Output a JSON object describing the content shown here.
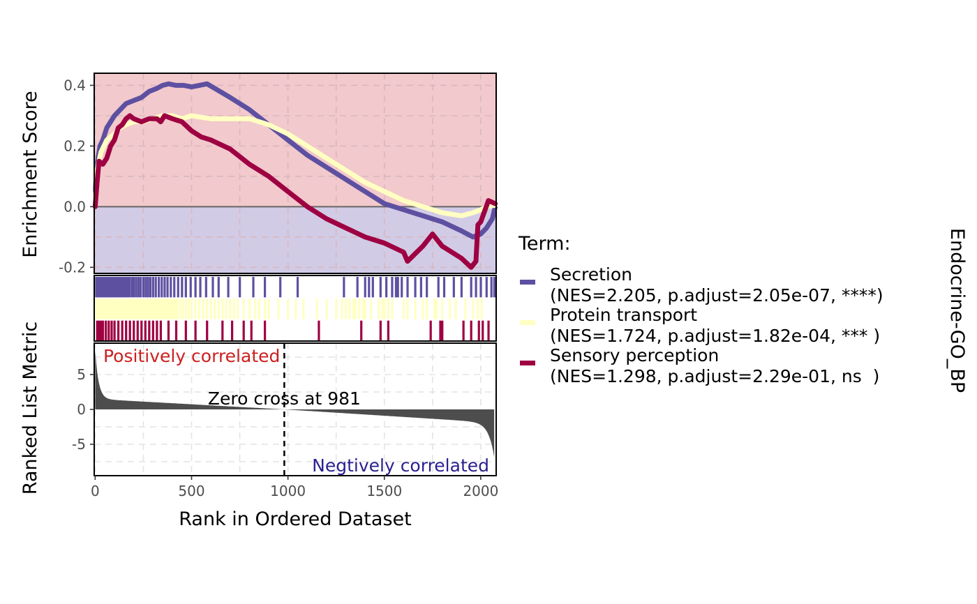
{
  "chart_data": {
    "type": "line",
    "title": "",
    "strip_label": "Endocrine-GO_BP",
    "xlabel": "Rank in Ordered Dataset",
    "xlim": [
      -5,
      2080
    ],
    "x_ticks": [
      0,
      500,
      1000,
      1500,
      2000
    ],
    "x_tick_labels": [
      "0",
      "500",
      "1000",
      "1500",
      "2000"
    ],
    "grid": true,
    "legend_position": "right",
    "legend_title": "Term:",
    "enrichment": {
      "ylabel": "Enrichment Score",
      "ylim": [
        -0.22,
        0.44
      ],
      "y_ticks": [
        -0.2,
        0.0,
        0.2,
        0.4
      ],
      "y_tick_labels": [
        "-0.2",
        "0.0",
        "0.2",
        "0.4"
      ],
      "positive_fill": "#f2c9cc",
      "negative_fill": "#d2cbe6",
      "series": [
        {
          "name": "Secretion",
          "stats": "(NES=2.205, p.adjust=2.05e-07, ****)",
          "color": "#5e50a1",
          "x": [
            0,
            10,
            25,
            40,
            60,
            80,
            100,
            130,
            160,
            200,
            240,
            280,
            320,
            350,
            380,
            420,
            460,
            500,
            540,
            580,
            620,
            700,
            800,
            900,
            1000,
            1100,
            1200,
            1300,
            1400,
            1500,
            1600,
            1700,
            1800,
            1900,
            1960,
            2000,
            2030,
            2060,
            2075
          ],
          "y": [
            0.05,
            0.14,
            0.2,
            0.22,
            0.26,
            0.28,
            0.3,
            0.32,
            0.34,
            0.35,
            0.36,
            0.38,
            0.39,
            0.4,
            0.405,
            0.4,
            0.4,
            0.395,
            0.4,
            0.405,
            0.39,
            0.36,
            0.32,
            0.27,
            0.22,
            0.17,
            0.13,
            0.09,
            0.05,
            0.01,
            -0.01,
            -0.03,
            -0.05,
            -0.08,
            -0.1,
            -0.09,
            -0.07,
            -0.04,
            0.0
          ]
        },
        {
          "name": "Protein transport",
          "stats": "(NES=1.724, p.adjust=1.82e-04, *** )",
          "color": "#ffffc2",
          "x": [
            0,
            10,
            30,
            60,
            100,
            130,
            160,
            200,
            250,
            300,
            350,
            400,
            450,
            500,
            550,
            600,
            700,
            800,
            900,
            1000,
            1100,
            1200,
            1300,
            1400,
            1500,
            1600,
            1700,
            1800,
            1900,
            1960,
            2000,
            2030,
            2075
          ],
          "y": [
            0.03,
            0.12,
            0.18,
            0.22,
            0.24,
            0.26,
            0.27,
            0.28,
            0.28,
            0.29,
            0.3,
            0.3,
            0.29,
            0.3,
            0.295,
            0.29,
            0.29,
            0.29,
            0.27,
            0.24,
            0.2,
            0.16,
            0.12,
            0.08,
            0.05,
            0.02,
            0.0,
            -0.02,
            -0.03,
            -0.02,
            -0.01,
            0.0,
            0.005
          ]
        },
        {
          "name": "Sensory perception",
          "stats": "(NES=1.298, p.adjust=2.29e-01, ns  )",
          "color": "#9e0142",
          "x": [
            0,
            10,
            20,
            40,
            60,
            80,
            100,
            120,
            140,
            160,
            180,
            200,
            240,
            280,
            320,
            340,
            360,
            400,
            450,
            500,
            550,
            600,
            700,
            800,
            900,
            1000,
            1100,
            1200,
            1300,
            1400,
            1500,
            1600,
            1620,
            1700,
            1750,
            1800,
            1900,
            1950,
            1975,
            1985,
            2000,
            2040,
            2075
          ],
          "y": [
            0.0,
            0.08,
            0.15,
            0.14,
            0.16,
            0.2,
            0.22,
            0.26,
            0.27,
            0.29,
            0.3,
            0.29,
            0.28,
            0.29,
            0.29,
            0.28,
            0.3,
            0.29,
            0.28,
            0.25,
            0.23,
            0.22,
            0.19,
            0.14,
            0.1,
            0.05,
            0.0,
            -0.04,
            -0.07,
            -0.1,
            -0.12,
            -0.15,
            -0.18,
            -0.13,
            -0.09,
            -0.13,
            -0.17,
            -0.2,
            -0.18,
            -0.06,
            -0.05,
            0.02,
            0.01
          ]
        }
      ]
    },
    "gene_hits": [
      {
        "name": "Secretion",
        "color": "#5e50a1",
        "positions": [
          5,
          12,
          20,
          28,
          35,
          42,
          50,
          58,
          66,
          74,
          82,
          90,
          100,
          108,
          116,
          124,
          132,
          140,
          150,
          158,
          168,
          178,
          190,
          200,
          212,
          224,
          236,
          250,
          262,
          274,
          286,
          300,
          314,
          330,
          345,
          360,
          375,
          392,
          410,
          430,
          450,
          470,
          495,
          520,
          545,
          575,
          610,
          640,
          690,
          750,
          820,
          880,
          960,
          1050,
          1290,
          1360,
          1400,
          1420,
          1440,
          1480,
          1510,
          1540,
          1560,
          1570,
          1590,
          1620,
          1660,
          1690,
          1720,
          1780,
          1810,
          1860,
          1900,
          1950,
          1975,
          2000,
          2030,
          2055,
          2070
        ]
      },
      {
        "name": "Protein transport",
        "color": "#ffffc2",
        "positions": [
          5,
          15,
          25,
          35,
          45,
          55,
          65,
          75,
          85,
          95,
          105,
          115,
          125,
          135,
          145,
          155,
          165,
          175,
          185,
          195,
          205,
          215,
          225,
          235,
          245,
          255,
          265,
          275,
          285,
          295,
          305,
          315,
          325,
          335,
          345,
          355,
          365,
          375,
          385,
          395,
          405,
          415,
          425,
          440,
          455,
          470,
          485,
          500,
          520,
          540,
          560,
          580,
          600,
          620,
          640,
          660,
          680,
          700,
          720,
          740,
          770,
          800,
          830,
          850,
          880,
          900,
          950,
          1000,
          1040,
          1080,
          1150,
          1200,
          1250,
          1280,
          1300,
          1320,
          1340,
          1350,
          1370,
          1390,
          1400,
          1430,
          1470,
          1490,
          1500,
          1520,
          1540,
          1600,
          1620,
          1660,
          1700,
          1720,
          1760,
          1770,
          1800,
          1840,
          1870,
          1920,
          1960,
          1985,
          2005
        ]
      },
      {
        "name": "Sensory perception",
        "color": "#9e0142",
        "positions": [
          10,
          20,
          30,
          40,
          55,
          70,
          85,
          100,
          120,
          140,
          160,
          180,
          200,
          220,
          240,
          260,
          280,
          300,
          320,
          340,
          380,
          420,
          470,
          520,
          580,
          660,
          710,
          770,
          810,
          880,
          1160,
          1380,
          1480,
          1520,
          1740,
          1790,
          1800,
          1910,
          1950,
          1990,
          2010,
          2040
        ]
      }
    ],
    "ranked_metric": {
      "ylabel": "Ranked List Metric",
      "ylim": [
        -9.5,
        9.5
      ],
      "y_ticks": [
        -5,
        0,
        5
      ],
      "y_tick_labels": [
        "-5",
        "0",
        "5"
      ],
      "fill": "#4d4d4d",
      "n": 2070,
      "max": 8.5,
      "min": -8.2,
      "zero_cross": 981,
      "zero_cross_label": "Zero cross at 981",
      "positive_label": "Positively correlated",
      "positive_color": "#cc1f1f",
      "negative_label": "Negtively correlated",
      "negative_color": "#2a1f8f"
    }
  }
}
